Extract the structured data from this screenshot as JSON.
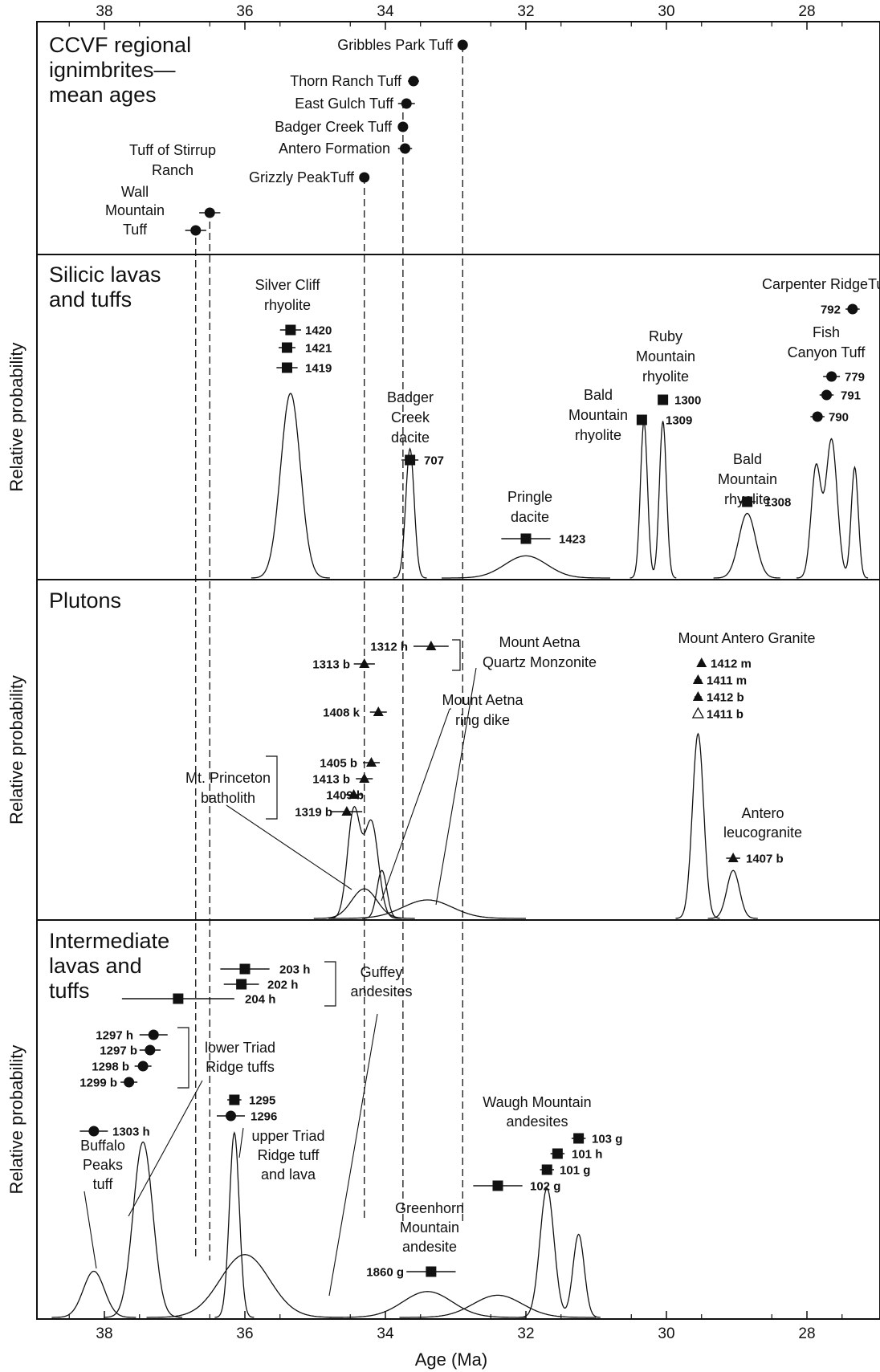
{
  "chart_data": {
    "type": "scatter",
    "xlabel": "Age (Ma)",
    "ylabel": "Relative probability",
    "xlim": [
      39,
      26.6
    ],
    "x_reversed": true,
    "xticks": [
      38,
      36,
      34,
      32,
      30,
      28
    ],
    "tick_labels": [
      "38",
      "36",
      "34",
      "32",
      "30",
      "28"
    ],
    "grid": false,
    "reference_lines": [
      {
        "x": 36.7,
        "style": "dashed"
      },
      {
        "x": 36.5,
        "style": "dashed"
      },
      {
        "x": 34.3,
        "style": "dashed"
      },
      {
        "x": 33.75,
        "style": "dashed"
      },
      {
        "x": 32.9,
        "style": "dashed"
      }
    ],
    "panels": [
      {
        "title": "CCVF regional ignimbrites— mean ages",
        "title_lines": [
          "CCVF regional",
          "ignimbrites—",
          "mean ages"
        ],
        "has_ylabel": false,
        "curves": [],
        "points": [
          {
            "label_lines": [
              "Gribbles Park Tuff"
            ],
            "age": 32.9,
            "err": 0.06,
            "marker": "circle"
          },
          {
            "label_lines": [
              "Thorn Ranch Tuff"
            ],
            "age": 33.6,
            "err": 0.08,
            "marker": "circle"
          },
          {
            "label_lines": [
              "East Gulch Tuff"
            ],
            "age": 33.7,
            "err": 0.12,
            "marker": "circle"
          },
          {
            "label_lines": [
              "Badger Creek Tuff"
            ],
            "age": 33.75,
            "err": 0.05,
            "marker": "circle"
          },
          {
            "label_lines": [
              "Antero Formation"
            ],
            "age": 33.72,
            "err": 0.1,
            "marker": "circle"
          },
          {
            "label_lines": [
              "Grizzly PeakTuff"
            ],
            "age": 34.3,
            "err": 0.07,
            "marker": "circle"
          },
          {
            "label_lines": [
              "Tuff of Stirrup",
              "Ranch"
            ],
            "age": 36.5,
            "err": 0.15,
            "marker": "circle"
          },
          {
            "label_lines": [
              "Wall",
              "Mountain",
              "Tuff"
            ],
            "age": 36.7,
            "err": 0.15,
            "marker": "circle"
          }
        ]
      },
      {
        "title": "Silicic lavas and tuffs",
        "title_lines": [
          "Silicic lavas",
          "and tuffs"
        ],
        "has_ylabel": true,
        "group_labels": [
          "Silver Cliff rhyolite",
          "Badger Creek dacite",
          "Pringle dacite",
          "Bald Mountain rhyolite",
          "Ruby Mountain rhyolite",
          "Bald Mountain rhyolite",
          "Carpenter RidgeTuff",
          "Fish Canyon Tuff"
        ],
        "group_label_lines": [
          [
            "Silver Cliff",
            "rhyolite"
          ],
          [
            "Badger",
            "Creek",
            "dacite"
          ],
          [
            "Pringle",
            "dacite"
          ],
          [
            "Bald",
            "Mountain",
            "rhyolite"
          ],
          [
            "Ruby",
            "Mountain",
            "rhyolite"
          ],
          [
            "Bald",
            "Mountain",
            "rhyolite"
          ],
          [
            "Carpenter RidgeTuff"
          ],
          [
            "Fish",
            "Canyon Tuff"
          ]
        ],
        "points": [
          {
            "sample": "1420",
            "age": 35.35,
            "err": 0.15,
            "marker": "square"
          },
          {
            "sample": "1421",
            "age": 35.4,
            "err": 0.12,
            "marker": "square"
          },
          {
            "sample": "1419",
            "age": 35.4,
            "err": 0.15,
            "marker": "square"
          },
          {
            "sample": "707",
            "age": 33.65,
            "err": 0.12,
            "marker": "square"
          },
          {
            "sample": "1423",
            "age": 32.0,
            "err": 0.35,
            "marker": "square"
          },
          {
            "sample": "1309",
            "age": 30.35,
            "err": 0.05,
            "marker": "square"
          },
          {
            "sample": "1300",
            "age": 30.05,
            "err": 0.04,
            "marker": "square"
          },
          {
            "sample": "1308",
            "age": 28.85,
            "err": 0.12,
            "marker": "square"
          },
          {
            "sample": "792",
            "age": 27.35,
            "err": 0.1,
            "marker": "circle"
          },
          {
            "sample": "779",
            "age": 27.65,
            "err": 0.12,
            "marker": "circle"
          },
          {
            "sample": "791",
            "age": 27.72,
            "err": 0.1,
            "marker": "circle"
          },
          {
            "sample": "790",
            "age": 27.85,
            "err": 0.1,
            "marker": "circle"
          }
        ],
        "curves": [
          {
            "peaks": [
              [
                35.35,
                0.14,
                1.0
              ]
            ]
          },
          {
            "peaks": [
              [
                33.65,
                0.06,
                0.7
              ]
            ]
          },
          {
            "peaks": [
              [
                32.0,
                0.3,
                0.12
              ]
            ]
          },
          {
            "peaks": [
              [
                30.32,
                0.05,
                0.85
              ],
              [
                30.05,
                0.05,
                0.85
              ]
            ]
          },
          {
            "peaks": [
              [
                28.85,
                0.12,
                0.35
              ]
            ]
          },
          {
            "peaks": [
              [
                27.87,
                0.07,
                0.6
              ],
              [
                27.65,
                0.08,
                0.75
              ],
              [
                27.32,
                0.05,
                0.6
              ]
            ]
          }
        ]
      },
      {
        "title": "Plutons",
        "title_lines": [
          "Plutons"
        ],
        "has_ylabel": true,
        "group_labels": [
          "Mount Aetna Quartz Monzonite",
          "Mount Aetna ring dike",
          "Mt. Princeton batholith",
          "Mount Antero Granite",
          "Antero leucogranite"
        ],
        "group_label_lines": [
          [
            "Mount Aetna",
            "Quartz Monzonite"
          ],
          [
            "Mount Aetna",
            "ring dike"
          ],
          [
            "Mt. Princeton",
            "batholith"
          ],
          [
            "Mount Antero Granite"
          ],
          [
            "Antero",
            "leucogranite"
          ]
        ],
        "points": [
          {
            "sample": "1312 h",
            "age": 33.35,
            "err": 0.25,
            "marker": "triangle"
          },
          {
            "sample": "1313 b",
            "age": 34.3,
            "err": 0.15,
            "marker": "triangle"
          },
          {
            "sample": "1408 k",
            "age": 34.1,
            "err": 0.12,
            "marker": "triangle"
          },
          {
            "sample": "1405 b",
            "age": 34.2,
            "err": 0.12,
            "marker": "triangle"
          },
          {
            "sample": "1413 b",
            "age": 34.3,
            "err": 0.12,
            "marker": "triangle"
          },
          {
            "sample": "1409 b",
            "age": 34.45,
            "err": 0.12,
            "marker": "triangle"
          },
          {
            "sample": "1319 b",
            "age": 34.55,
            "err": 0.22,
            "marker": "triangle"
          },
          {
            "sample": "1412 m",
            "age": 29.5,
            "err": 0.04,
            "marker": "triangle"
          },
          {
            "sample": "1411 m",
            "age": 29.55,
            "err": 0.05,
            "marker": "triangle"
          },
          {
            "sample": "1412 b",
            "age": 29.55,
            "err": 0.05,
            "marker": "triangle"
          },
          {
            "sample": "1411 b",
            "age": 29.55,
            "err": 0.05,
            "marker": "triangle-open"
          },
          {
            "sample": "1407 b",
            "age": 29.05,
            "err": 0.1,
            "marker": "triangle"
          }
        ],
        "curves": [
          {
            "peaks": [
              [
                34.45,
                0.09,
                0.58
              ],
              [
                34.2,
                0.1,
                0.52
              ]
            ]
          },
          {
            "peaks": [
              [
                34.3,
                0.18,
                0.16
              ]
            ]
          },
          {
            "peaks": [
              [
                34.05,
                0.07,
                0.26
              ]
            ]
          },
          {
            "peaks": [
              [
                33.4,
                0.35,
                0.1
              ]
            ]
          },
          {
            "peaks": [
              [
                29.55,
                0.08,
                1.0
              ]
            ]
          },
          {
            "peaks": [
              [
                29.05,
                0.09,
                0.26
              ]
            ]
          }
        ]
      },
      {
        "title": "Intermediate lavas and tuffs",
        "title_lines": [
          "Intermediate",
          "lavas and",
          "tuffs"
        ],
        "has_ylabel": true,
        "group_labels": [
          "Guffey andesites",
          "lower Triad Ridge tuffs",
          "Buffalo Peaks tuff",
          "upper Triad Ridge tuff and lava",
          "Waugh Mountain andesites",
          "Greenhorn Mountain andesite"
        ],
        "group_label_lines": [
          [
            "Guffey",
            "andesites"
          ],
          [
            "lower Triad",
            "Ridge tuffs"
          ],
          [
            "Buffalo",
            "Peaks",
            "tuff"
          ],
          [
            "upper Triad",
            "Ridge tuff",
            "and lava"
          ],
          [
            "Waugh Mountain",
            "andesites"
          ],
          [
            "Greenhorn",
            "Mountain",
            "andesite"
          ]
        ],
        "points": [
          {
            "sample": "203 h",
            "age": 36.0,
            "err": 0.35,
            "marker": "square"
          },
          {
            "sample": "202 h",
            "age": 36.05,
            "err": 0.25,
            "marker": "square"
          },
          {
            "sample": "204 h",
            "age": 36.95,
            "err": 0.8,
            "marker": "square"
          },
          {
            "sample": "1297 h",
            "age": 37.3,
            "err": 0.2,
            "marker": "circle"
          },
          {
            "sample": "1297 b",
            "age": 37.35,
            "err": 0.15,
            "marker": "circle"
          },
          {
            "sample": "1298 b",
            "age": 37.45,
            "err": 0.12,
            "marker": "circle"
          },
          {
            "sample": "1299 b",
            "age": 37.65,
            "err": 0.12,
            "marker": "circle"
          },
          {
            "sample": "1295",
            "age": 36.15,
            "err": 0.1,
            "marker": "square"
          },
          {
            "sample": "1296",
            "age": 36.2,
            "err": 0.2,
            "marker": "circle"
          },
          {
            "sample": "1303 h",
            "age": 38.15,
            "err": 0.2,
            "marker": "circle"
          },
          {
            "sample": "103 g",
            "age": 31.25,
            "err": 0.1,
            "marker": "square"
          },
          {
            "sample": "101 h",
            "age": 31.55,
            "err": 0.1,
            "marker": "square"
          },
          {
            "sample": "101 g",
            "age": 31.7,
            "err": 0.1,
            "marker": "square"
          },
          {
            "sample": "102 g",
            "age": 32.4,
            "err": 0.35,
            "marker": "square"
          },
          {
            "sample": "1860 g",
            "age": 33.35,
            "err": 0.35,
            "marker": "square"
          }
        ],
        "curves": [
          {
            "peaks": [
              [
                38.15,
                0.15,
                0.25
              ]
            ]
          },
          {
            "peaks": [
              [
                37.45,
                0.14,
                0.95
              ]
            ]
          },
          {
            "peaks": [
              [
                36.15,
                0.07,
                1.0
              ]
            ]
          },
          {
            "peaks": [
              [
                36.0,
                0.35,
                0.34
              ]
            ]
          },
          {
            "peaks": [
              [
                33.4,
                0.35,
                0.14
              ]
            ]
          },
          {
            "peaks": [
              [
                32.4,
                0.35,
                0.12
              ]
            ]
          },
          {
            "peaks": [
              [
                31.7,
                0.1,
                0.7
              ],
              [
                31.25,
                0.08,
                0.45
              ]
            ]
          }
        ]
      }
    ]
  }
}
